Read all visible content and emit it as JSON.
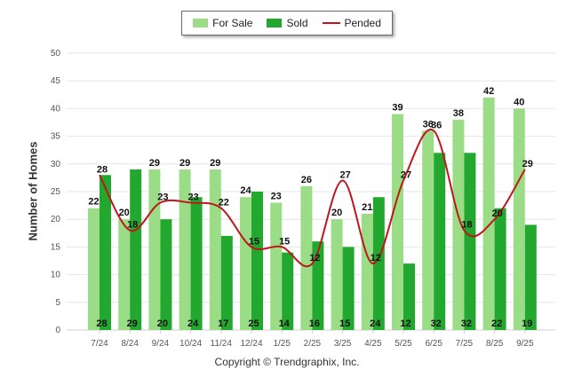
{
  "chart_data": {
    "type": "bar",
    "categories": [
      "7/24",
      "8/24",
      "9/24",
      "10/24",
      "11/24",
      "12/24",
      "1/25",
      "2/25",
      "3/25",
      "4/25",
      "5/25",
      "6/25",
      "7/25",
      "8/25",
      "9/25"
    ],
    "series": [
      {
        "name": "For Sale",
        "type": "bar",
        "color": "#9bdd86",
        "values": [
          22,
          20,
          29,
          29,
          29,
          24,
          23,
          26,
          20,
          21,
          39,
          36,
          38,
          42,
          40
        ]
      },
      {
        "name": "Sold",
        "type": "bar",
        "color": "#22a82e",
        "values": [
          28,
          29,
          20,
          24,
          17,
          25,
          14,
          16,
          15,
          24,
          12,
          32,
          32,
          22,
          19
        ]
      },
      {
        "name": "Pended",
        "type": "line",
        "color": "#c0161b",
        "values": [
          28,
          18,
          23,
          23,
          22,
          15,
          15,
          12,
          27,
          12,
          27,
          36,
          18,
          20,
          29
        ]
      }
    ],
    "ylabel": "Number of Homes",
    "xlabel": "",
    "ylim": [
      0,
      50
    ],
    "yticks": [
      0,
      5,
      10,
      15,
      20,
      25,
      30,
      35,
      40,
      45,
      50
    ],
    "grid": true,
    "legend_position": "top-center"
  },
  "legend": {
    "items": [
      {
        "label": "For Sale",
        "color": "#9bdd86"
      },
      {
        "label": "Sold",
        "color": "#22a82e"
      },
      {
        "label": "Pended",
        "color": "#c0161b"
      }
    ]
  },
  "footer": {
    "copyright": "Copyright © Trendgraphix, Inc."
  }
}
